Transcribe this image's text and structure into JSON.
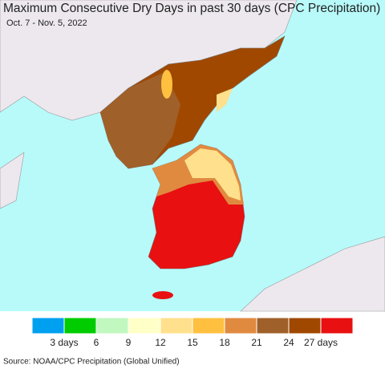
{
  "title": "Maximum Consecutive Dry Days in past 30 days (CPC Precipitation)",
  "subtitle": "Oct. 7 - Nov. 5, 2022",
  "legend": {
    "colors": [
      "#00a0f0",
      "#00cc00",
      "#c0f8c0",
      "#ffffc8",
      "#ffe08c",
      "#ffc040",
      "#e08a40",
      "#a0602a",
      "#a04800",
      "#e81010"
    ],
    "labels": [
      "3 days",
      "6",
      "9",
      "12",
      "15",
      "18",
      "21",
      "24",
      "27 days"
    ]
  },
  "source": "Source: NOAA/CPC Precipitation (Global Unified)"
}
